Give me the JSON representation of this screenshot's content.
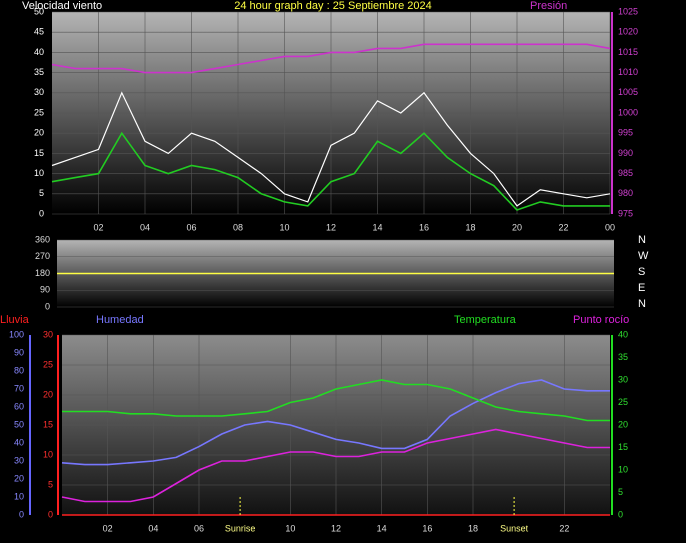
{
  "chart_data": [
    {
      "type": "line",
      "title": "24 hour graph day : 25 Septiembre 2024",
      "y_label": "Velocidad viento",
      "x": [
        0,
        1,
        2,
        3,
        4,
        5,
        6,
        7,
        8,
        9,
        10,
        11,
        12,
        13,
        14,
        15,
        16,
        17,
        18,
        19,
        20,
        21,
        22,
        23,
        24
      ],
      "xlim": [
        0,
        24
      ],
      "xticks": [
        {
          "value": 2,
          "label": "02"
        },
        {
          "value": 4,
          "label": "04"
        },
        {
          "value": 6,
          "label": "06"
        },
        {
          "value": 8,
          "label": "08"
        },
        10,
        12,
        14,
        16,
        18,
        20,
        22,
        {
          "value": 24,
          "label": "00"
        }
      ],
      "ylim": [
        0,
        50
      ],
      "yticks": [
        0,
        5,
        10,
        15,
        20,
        25,
        30,
        35,
        40,
        45,
        50
      ],
      "y2lim": [
        975,
        1025
      ],
      "y2ticks": [
        975,
        980,
        985,
        990,
        995,
        1000,
        1005,
        1010,
        1015,
        1020,
        1025
      ],
      "grid": true,
      "series": [
        {
          "color": "#ffffff",
          "values": [
            12,
            14,
            16,
            30,
            18,
            15,
            20,
            18,
            14,
            10,
            5,
            3,
            17,
            20,
            28,
            25,
            30,
            22,
            15,
            10,
            2,
            6,
            5,
            4,
            5
          ]
        },
        {
          "color": "#22cc22",
          "values": [
            8,
            9,
            10,
            20,
            12,
            10,
            12,
            11,
            9,
            5,
            3,
            2,
            8,
            10,
            18,
            15,
            20,
            14,
            10,
            7,
            1,
            3,
            2,
            2,
            2
          ]
        },
        {
          "name": "Presión",
          "color": "#cc33cc",
          "axis": "y2",
          "values": [
            1012,
            1011,
            1011,
            1011,
            1010,
            1010,
            1010,
            1011,
            1012,
            1013,
            1014,
            1014,
            1015,
            1015,
            1016,
            1016,
            1017,
            1017,
            1017,
            1017,
            1017,
            1017,
            1017,
            1017,
            1016
          ]
        }
      ]
    },
    {
      "type": "line",
      "x": [
        0,
        1,
        2,
        3,
        4,
        5,
        6,
        7,
        8,
        9,
        10,
        11,
        12,
        13,
        14,
        15,
        16,
        17,
        18,
        19,
        20,
        21,
        22,
        23,
        24
      ],
      "xlim": [
        0,
        24
      ],
      "ylim": [
        0,
        360
      ],
      "yticks": [
        0,
        90,
        180,
        270,
        360
      ],
      "grid": true,
      "direction_labels": [
        "N",
        "W",
        "S",
        "E",
        "N"
      ],
      "series": [
        {
          "color": "#ffff44",
          "values": [
            180,
            180,
            180,
            180,
            180,
            180,
            180,
            180,
            180,
            180,
            180,
            180,
            180,
            180,
            180,
            180,
            180,
            180,
            180,
            180,
            180,
            180,
            180,
            180,
            180
          ]
        }
      ]
    },
    {
      "type": "line",
      "x": [
        0,
        1,
        2,
        3,
        4,
        5,
        6,
        7,
        8,
        9,
        10,
        11,
        12,
        13,
        14,
        15,
        16,
        17,
        18,
        19,
        20,
        21,
        22,
        23,
        24
      ],
      "xlim": [
        0,
        24
      ],
      "xticks": [
        {
          "value": 2,
          "label": "02"
        },
        {
          "value": 4,
          "label": "04"
        },
        {
          "value": 6,
          "label": "06"
        },
        10,
        12,
        14,
        16,
        18,
        22
      ],
      "ylim": [
        0,
        30
      ],
      "yticks": [
        0,
        5,
        10,
        15,
        20,
        25,
        30
      ],
      "y2lim": [
        0,
        40
      ],
      "y2ticks": [
        0,
        5,
        10,
        15,
        20,
        25,
        30,
        35,
        40
      ],
      "y3lim": [
        0,
        100
      ],
      "y3ticks": [
        0,
        10,
        20,
        30,
        40,
        50,
        60,
        70,
        80,
        90,
        100
      ],
      "grid": true,
      "series": [
        {
          "name": "Lluvia",
          "color": "#ff2020",
          "values": [
            0,
            0,
            0,
            0,
            0,
            0,
            0,
            0,
            0,
            0,
            0,
            0,
            0,
            0,
            0,
            0,
            0,
            0,
            0,
            0,
            0,
            0,
            0,
            0,
            0
          ]
        },
        {
          "name": "Humedad",
          "color": "#7777ff",
          "axis": "y3",
          "values": [
            29,
            28,
            28,
            29,
            30,
            32,
            38,
            45,
            50,
            52,
            50,
            46,
            42,
            40,
            37,
            37,
            42,
            55,
            62,
            68,
            73,
            75,
            70,
            69,
            69
          ]
        },
        {
          "name": "Temperatura",
          "color": "#22dd22",
          "axis": "y2",
          "values": [
            23,
            23,
            23,
            22.5,
            22.5,
            22,
            22,
            22,
            22.5,
            23,
            25,
            26,
            28,
            29,
            30,
            29,
            29,
            28,
            26,
            24,
            23,
            22.5,
            22,
            21,
            21
          ]
        },
        {
          "name": "Punto rocío",
          "color": "#dd22dd",
          "axis": "y2",
          "values": [
            4,
            3,
            3,
            3,
            4,
            7,
            10,
            12,
            12,
            13,
            14,
            14,
            13,
            13,
            14,
            14,
            16,
            17,
            18,
            19,
            18,
            17,
            16,
            15,
            15
          ]
        }
      ],
      "annotations": [
        {
          "text": "Sunrise",
          "x": 7.8
        },
        {
          "text": "Sunset",
          "x": 19.8
        }
      ]
    }
  ]
}
